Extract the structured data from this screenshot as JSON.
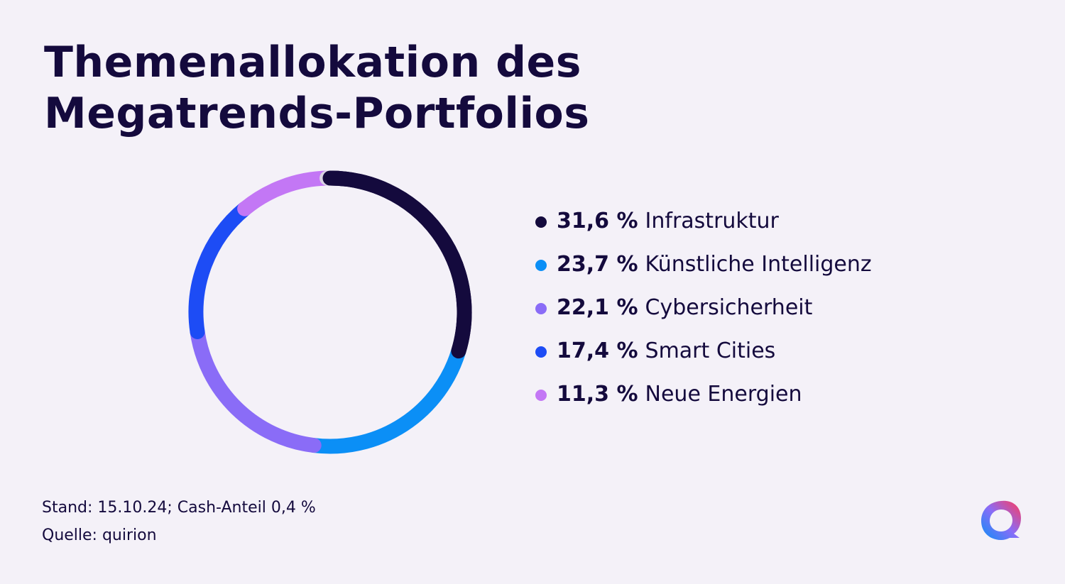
{
  "title": "Themenallokation des Megatrends-Portfolios",
  "chart_data": {
    "type": "pie",
    "variant": "donut",
    "slices": [
      {
        "value": 31.6,
        "value_label": "31,6 %",
        "label": "Infrastruktur",
        "color": "#140a3d"
      },
      {
        "value": 23.7,
        "value_label": "23,7 %",
        "label": "Künstliche Intelligenz",
        "color": "#0b8ff6"
      },
      {
        "value": 22.1,
        "value_label": "22,1 %",
        "label": "Cybersicherheit",
        "color": "#8a6cf7"
      },
      {
        "value": 17.4,
        "value_label": "17,4 %",
        "label": "Smart Cities",
        "color": "#1d4cf5"
      },
      {
        "value": 11.3,
        "value_label": "11,3 %",
        "label": "Neue Energien",
        "color": "#c377f5"
      }
    ],
    "remainder": {
      "value": 0.4,
      "color": "#d9d3e3"
    },
    "legend_position": "right"
  },
  "footnote": {
    "line1": "Stand: 15.10.24; Cash-Anteil 0,4 %",
    "line2": "Quelle: quirion"
  },
  "logo": {
    "icon": "quirion-logo-icon",
    "colors": [
      "#1d4cf5",
      "#8a6cf7",
      "#ff3b5c"
    ]
  },
  "colors": {
    "background": "#f4f1f8",
    "text": "#140a3d"
  }
}
